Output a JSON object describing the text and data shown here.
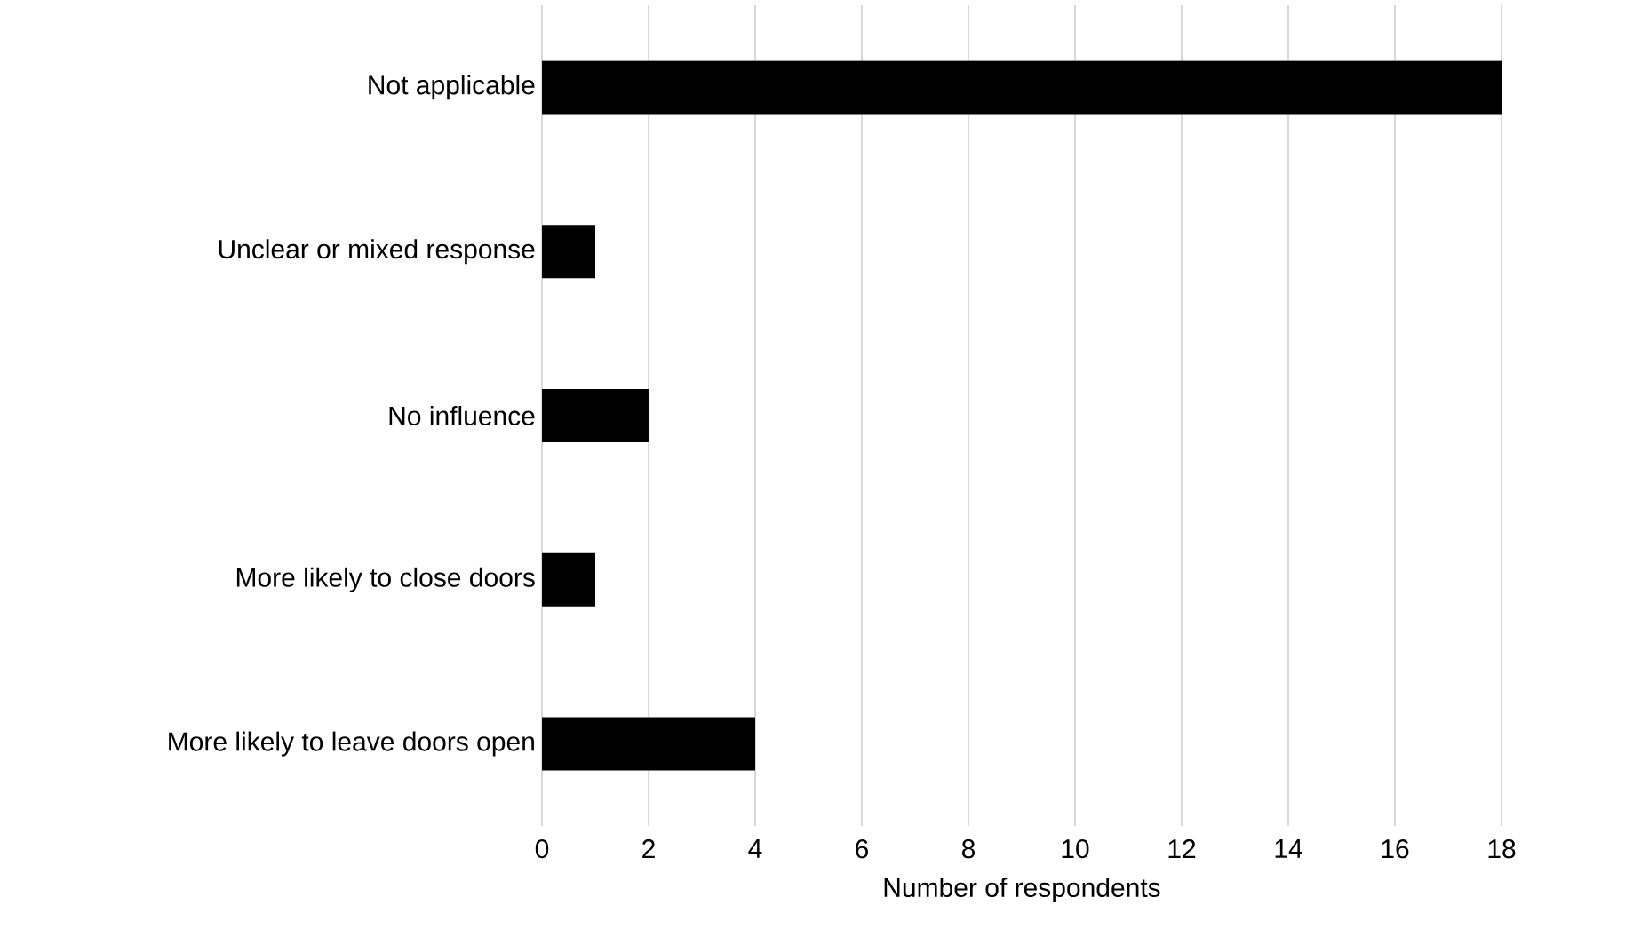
{
  "chart_data": {
    "type": "bar",
    "orientation": "horizontal",
    "xlabel": "Number of respondents",
    "categories": [
      "Not applicable",
      "Unclear or mixed response",
      "No influence",
      "More likely to close doors",
      "More likely to leave doors open"
    ],
    "values": [
      18,
      1,
      2,
      1,
      4
    ],
    "color": "#000000",
    "xlim": [
      0,
      18
    ],
    "xticks": [
      0,
      2,
      4,
      6,
      8,
      10,
      12,
      14,
      16,
      18
    ],
    "grid": "x"
  }
}
